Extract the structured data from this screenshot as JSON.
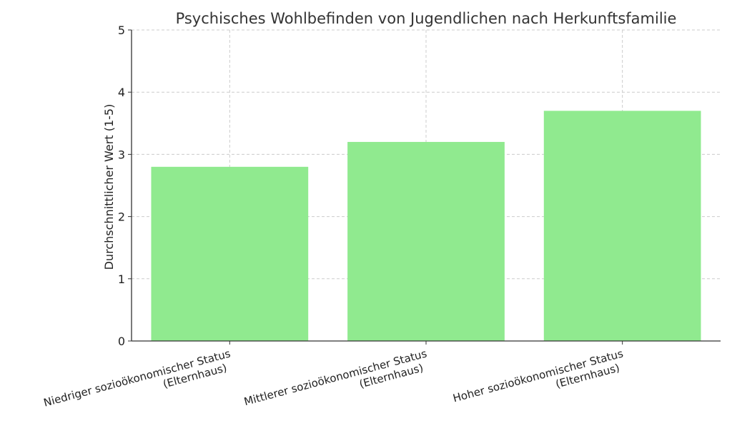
{
  "chart_data": {
    "type": "bar",
    "title": "Psychisches Wohlbefinden von Jugendlichen nach Herkunftsfamilie",
    "xlabel": "",
    "ylabel": "Durchschnittlicher Wert (1-5)",
    "categories": [
      [
        "Niedriger sozioökonomischer Status",
        "(Elternhaus)"
      ],
      [
        "Mittlerer sozioökonomischer Status",
        "(Elternhaus)"
      ],
      [
        "Hoher sozioökonomischer Status",
        "(Elternhaus)"
      ]
    ],
    "values": [
      2.8,
      3.2,
      3.7
    ],
    "ylim": [
      0,
      5
    ],
    "yticks": [
      0,
      1,
      2,
      3,
      4,
      5
    ],
    "grid": true,
    "bar_color": "#90ea8f"
  }
}
